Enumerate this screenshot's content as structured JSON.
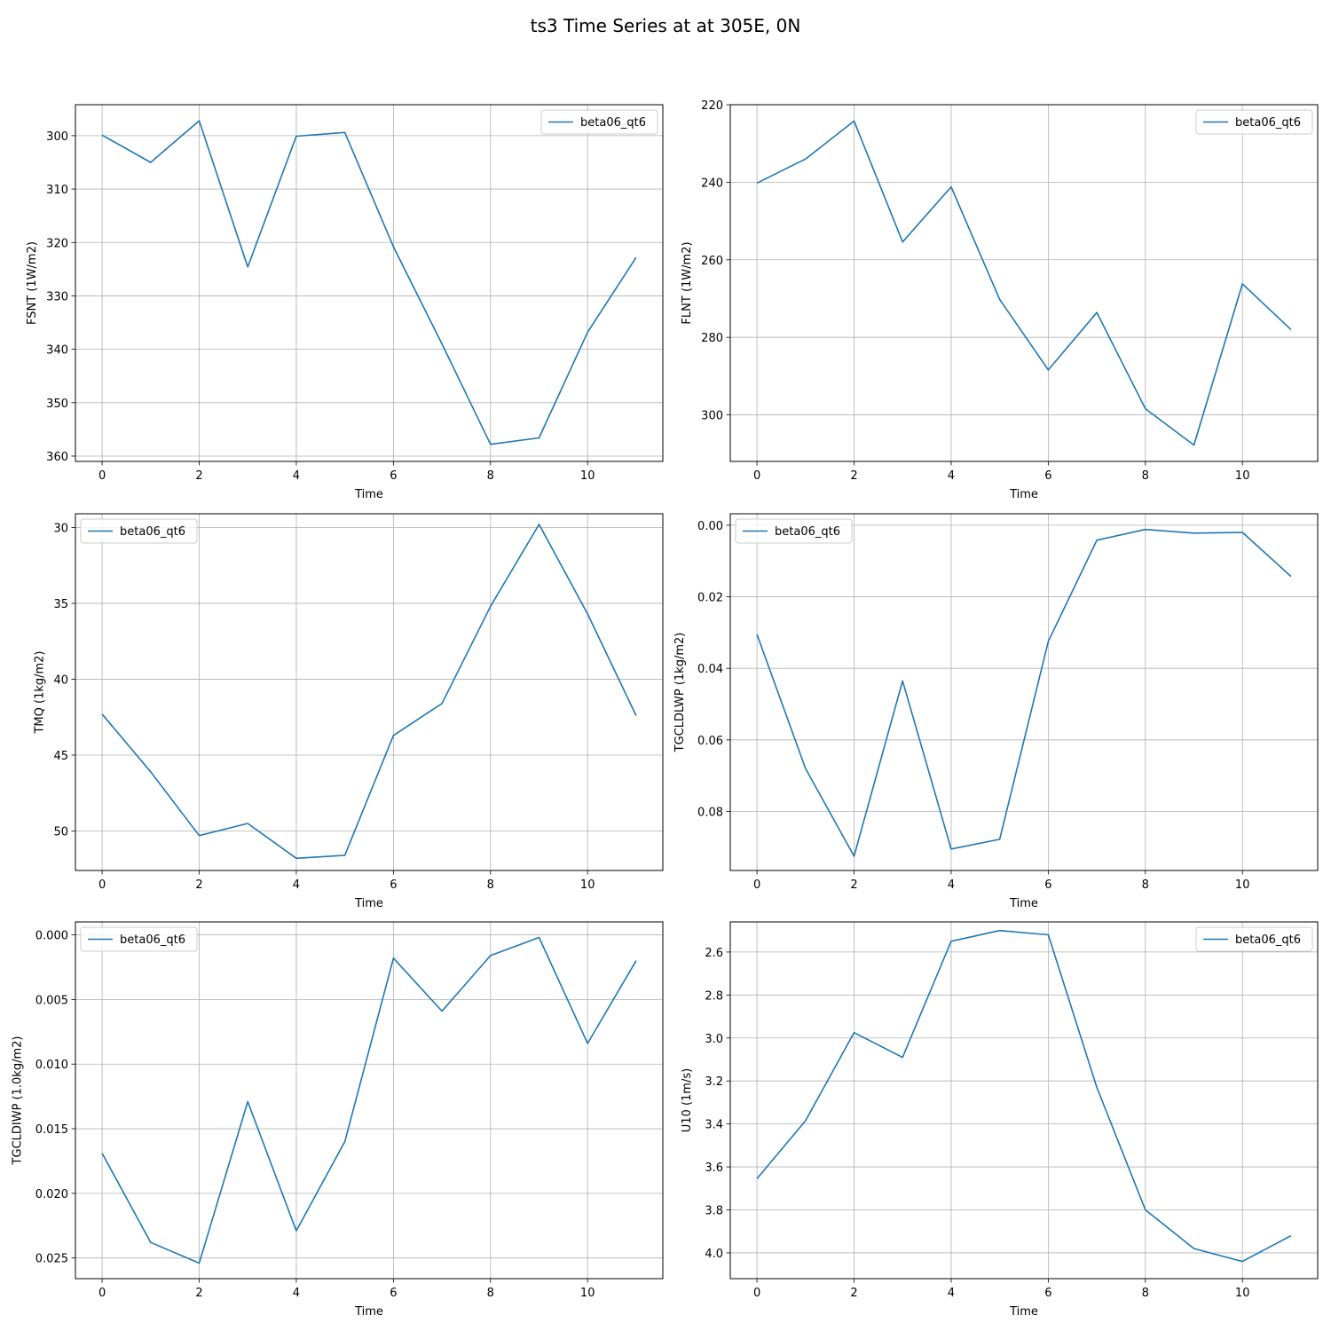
{
  "figure": {
    "title": "ts3 Time Series at at 305E, 0N"
  },
  "chart_data": [
    {
      "type": "line",
      "xlabel": "Time",
      "ylabel": "FSNT (1W/m2)",
      "y_inverted": true,
      "grid": true,
      "legend_location": "upper right",
      "xlim": [
        -0.55,
        11.55
      ],
      "ylim": [
        361,
        294.2
      ],
      "xticks": [
        0,
        2,
        4,
        6,
        8,
        10
      ],
      "yticks": [
        300,
        310,
        320,
        330,
        340,
        350,
        360
      ],
      "ytick_labels": [
        "300",
        "310",
        "320",
        "330",
        "340",
        "350",
        "360"
      ],
      "series": [
        {
          "name": "beta06_qt6",
          "color": "#1f77b4",
          "x": [
            0,
            1,
            2,
            3,
            4,
            5,
            6,
            7,
            8,
            9,
            10,
            11
          ],
          "y": [
            299.9,
            305.0,
            297.2,
            324.6,
            300.1,
            299.4,
            320.8,
            339.0,
            357.8,
            356.6,
            336.8,
            322.8
          ]
        }
      ]
    },
    {
      "type": "line",
      "xlabel": "Time",
      "ylabel": "FLNT (1W/m2)",
      "y_inverted": true,
      "grid": true,
      "legend_location": "upper right",
      "xlim": [
        -0.55,
        11.55
      ],
      "ylim": [
        312,
        220
      ],
      "xticks": [
        0,
        2,
        4,
        6,
        8,
        10
      ],
      "yticks": [
        220,
        240,
        260,
        280,
        300
      ],
      "ytick_labels": [
        "220",
        "240",
        "260",
        "280",
        "300"
      ],
      "series": [
        {
          "name": "beta06_qt6",
          "color": "#1f77b4",
          "x": [
            0,
            1,
            2,
            3,
            4,
            5,
            6,
            7,
            8,
            9,
            10,
            11
          ],
          "y": [
            240.2,
            234.0,
            224.2,
            255.4,
            241.2,
            270.2,
            288.4,
            273.6,
            298.4,
            307.8,
            266.2,
            278.0
          ]
        }
      ]
    },
    {
      "type": "line",
      "xlabel": "Time",
      "ylabel": "TMQ (1kg/m2)",
      "y_inverted": true,
      "grid": true,
      "legend_location": "upper left",
      "xlim": [
        -0.55,
        11.55
      ],
      "ylim": [
        52.6,
        29.1
      ],
      "xticks": [
        0,
        2,
        4,
        6,
        8,
        10
      ],
      "yticks": [
        30,
        35,
        40,
        45,
        50
      ],
      "ytick_labels": [
        "30",
        "35",
        "40",
        "45",
        "50"
      ],
      "series": [
        {
          "name": "beta06_qt6",
          "color": "#1f77b4",
          "x": [
            0,
            1,
            2,
            3,
            4,
            5,
            6,
            7,
            8,
            9,
            10,
            11
          ],
          "y": [
            42.3,
            46.1,
            50.3,
            49.5,
            51.8,
            51.6,
            43.7,
            41.6,
            35.2,
            29.8,
            35.7,
            42.4
          ]
        }
      ]
    },
    {
      "type": "line",
      "xlabel": "Time",
      "ylabel": "TGCLDLWP (1kg/m2)",
      "y_inverted": true,
      "grid": true,
      "legend_location": "upper left",
      "xlim": [
        -0.55,
        11.55
      ],
      "ylim": [
        0.0965,
        -0.0032
      ],
      "xticks": [
        0,
        2,
        4,
        6,
        8,
        10
      ],
      "yticks": [
        0.0,
        0.02,
        0.04,
        0.06,
        0.08
      ],
      "ytick_labels": [
        "0.00",
        "0.02",
        "0.04",
        "0.06",
        "0.08"
      ],
      "series": [
        {
          "name": "beta06_qt6",
          "color": "#1f77b4",
          "x": [
            0,
            1,
            2,
            3,
            4,
            5,
            6,
            7,
            8,
            9,
            10,
            11
          ],
          "y": [
            0.0305,
            0.068,
            0.0925,
            0.0435,
            0.0905,
            0.0878,
            0.0325,
            0.0042,
            0.0012,
            0.0022,
            0.002,
            0.0143
          ]
        }
      ]
    },
    {
      "type": "line",
      "xlabel": "Time",
      "ylabel": "TGCLDIWP (1.0kg/m2)",
      "y_inverted": true,
      "grid": true,
      "legend_location": "upper left",
      "xlim": [
        -0.55,
        11.55
      ],
      "ylim": [
        0.0266,
        -0.001
      ],
      "xticks": [
        0,
        2,
        4,
        6,
        8,
        10
      ],
      "yticks": [
        0.0,
        0.005,
        0.01,
        0.015,
        0.02,
        0.025
      ],
      "ytick_labels": [
        "0.000",
        "0.005",
        "0.010",
        "0.015",
        "0.020",
        "0.025"
      ],
      "series": [
        {
          "name": "beta06_qt6",
          "color": "#1f77b4",
          "x": [
            0,
            1,
            2,
            3,
            4,
            5,
            6,
            7,
            8,
            9,
            10,
            11
          ],
          "y": [
            0.0169,
            0.0238,
            0.0254,
            0.0129,
            0.0229,
            0.016,
            0.0018,
            0.0059,
            0.0016,
            0.0002,
            0.0084,
            0.002
          ]
        }
      ]
    },
    {
      "type": "line",
      "xlabel": "Time",
      "ylabel": "U10 (1m/s)",
      "y_inverted": true,
      "grid": true,
      "legend_location": "upper right",
      "xlim": [
        -0.55,
        11.55
      ],
      "ylim": [
        4.12,
        2.46
      ],
      "xticks": [
        0,
        2,
        4,
        6,
        8,
        10
      ],
      "yticks": [
        2.6,
        2.8,
        3.0,
        3.2,
        3.4,
        3.6,
        3.8,
        4.0
      ],
      "ytick_labels": [
        "2.6",
        "2.8",
        "3.0",
        "3.2",
        "3.4",
        "3.6",
        "3.8",
        "4.0"
      ],
      "series": [
        {
          "name": "beta06_qt6",
          "color": "#1f77b4",
          "x": [
            0,
            1,
            2,
            3,
            4,
            5,
            6,
            7,
            8,
            9,
            10,
            11
          ],
          "y": [
            3.655,
            3.385,
            2.975,
            3.09,
            2.55,
            2.5,
            2.52,
            3.23,
            3.8,
            3.98,
            4.04,
            3.92
          ]
        }
      ]
    }
  ]
}
